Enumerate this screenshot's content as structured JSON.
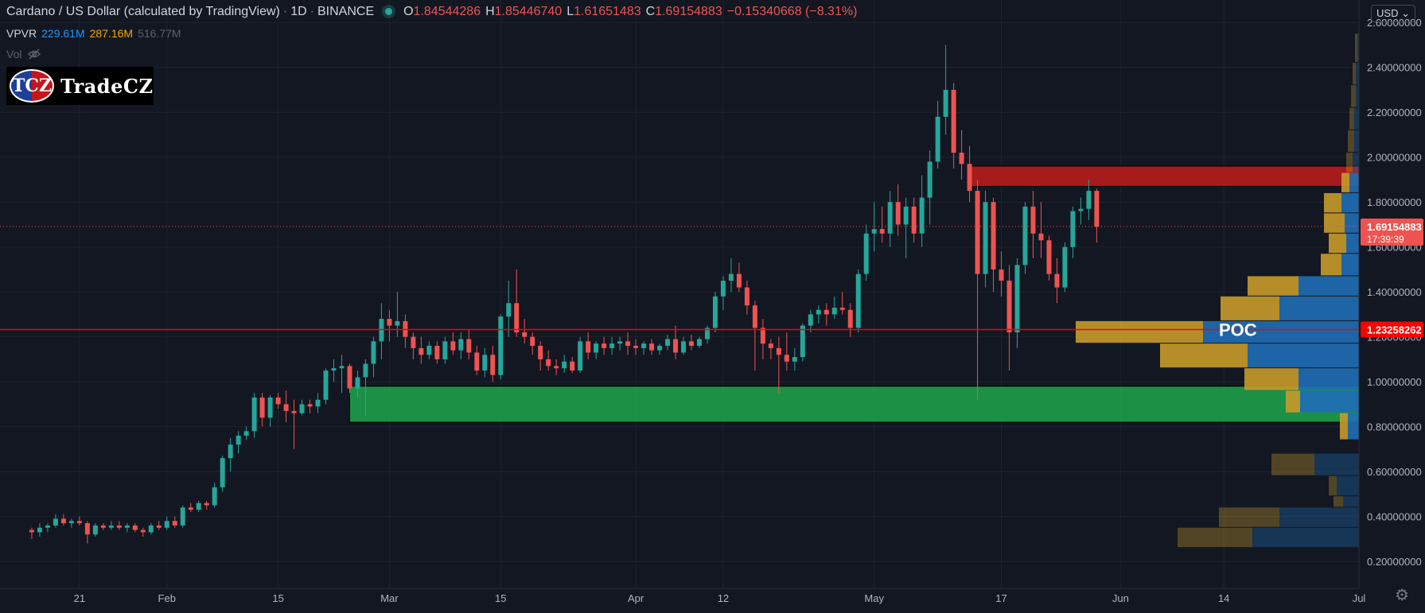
{
  "header": {
    "symbol": "Cardano / US Dollar (calculated by TradingView)",
    "interval": "1D",
    "exchange": "BINANCE",
    "ohlc": [
      {
        "k": "O",
        "v": "1.84544286"
      },
      {
        "k": "H",
        "v": "1.85446740"
      },
      {
        "k": "L",
        "v": "1.61651483"
      },
      {
        "k": "C",
        "v": "1.69154883"
      }
    ],
    "change": "−0.15340668 (−8.31%)"
  },
  "vpvr": {
    "label": "VPVR",
    "values": [
      {
        "text": "229.61M",
        "color": "#2196f3"
      },
      {
        "text": "287.16M",
        "color": "#f7a600"
      },
      {
        "text": "516.77M",
        "color": "#5d606b"
      }
    ]
  },
  "vol": {
    "label": "Vol"
  },
  "logo": {
    "badge": "TCZ",
    "name": "TradeCZ"
  },
  "currency": "USD",
  "colors": {
    "up": "#26a69a",
    "down": "#ef5350",
    "background": "#131722",
    "grid": "#1e222d",
    "poc": "#ff0000",
    "supply_zone": "#b71c1c",
    "demand_zone": "#1e9e4a",
    "vp_up": "#c89a2a",
    "vp_down": "#1f6eb5"
  },
  "chart_data": {
    "type": "candlestick",
    "y_axis": {
      "ticks": [
        0.2,
        0.4,
        0.6,
        0.8,
        1.0,
        1.2,
        1.4,
        1.6,
        1.8,
        2.0,
        2.2,
        2.4,
        2.6
      ],
      "tick_labels": [
        "0.20000000",
        "0.40000000",
        "0.60000000",
        "0.80000000",
        "1.00000000",
        "1.20000000",
        "1.40000000",
        "1.60000000",
        "1.80000000",
        "2.00000000",
        "2.20000000",
        "2.40000000",
        "2.60000000"
      ],
      "range": [
        0.08,
        2.7
      ]
    },
    "x_axis": {
      "range_days": [
        -4,
        167
      ],
      "ticks": [
        {
          "label": "21",
          "day": 6
        },
        {
          "label": "Feb",
          "day": 17
        },
        {
          "label": "15",
          "day": 31
        },
        {
          "label": "Mar",
          "day": 45
        },
        {
          "label": "15",
          "day": 59
        },
        {
          "label": "Apr",
          "day": 76
        },
        {
          "label": "12",
          "day": 87
        },
        {
          "label": "May",
          "day": 106
        },
        {
          "label": "17",
          "day": 122
        },
        {
          "label": "Jun",
          "day": 137
        },
        {
          "label": "14",
          "day": 150
        },
        {
          "label": "Jul",
          "day": 167
        }
      ]
    },
    "last_price": {
      "value": 1.69154883,
      "label": "1.69154883",
      "countdown": "17:39:39"
    },
    "poc": {
      "value": 1.23258262,
      "label": "1.23258262",
      "text": "POC"
    },
    "zones": [
      {
        "kind": "supply",
        "y_low": 1.87,
        "y_high": 1.96,
        "day_start": 118,
        "day_end": 172
      },
      {
        "kind": "demand",
        "y_low": 0.82,
        "y_high": 0.98,
        "day_start": 40,
        "day_end": 172
      }
    ],
    "candles": [
      [
        0.34,
        0.35,
        0.3,
        0.33
      ],
      [
        0.33,
        0.37,
        0.31,
        0.35
      ],
      [
        0.35,
        0.37,
        0.33,
        0.36
      ],
      [
        0.36,
        0.41,
        0.35,
        0.39
      ],
      [
        0.39,
        0.41,
        0.36,
        0.37
      ],
      [
        0.37,
        0.39,
        0.35,
        0.38
      ],
      [
        0.38,
        0.4,
        0.36,
        0.37
      ],
      [
        0.37,
        0.38,
        0.28,
        0.32
      ],
      [
        0.32,
        0.37,
        0.31,
        0.36
      ],
      [
        0.36,
        0.37,
        0.34,
        0.35
      ],
      [
        0.35,
        0.38,
        0.34,
        0.36
      ],
      [
        0.36,
        0.38,
        0.34,
        0.35
      ],
      [
        0.35,
        0.37,
        0.33,
        0.36
      ],
      [
        0.36,
        0.37,
        0.33,
        0.34
      ],
      [
        0.34,
        0.35,
        0.31,
        0.33
      ],
      [
        0.33,
        0.37,
        0.32,
        0.36
      ],
      [
        0.36,
        0.38,
        0.34,
        0.35
      ],
      [
        0.35,
        0.4,
        0.34,
        0.38
      ],
      [
        0.38,
        0.4,
        0.35,
        0.36
      ],
      [
        0.36,
        0.45,
        0.35,
        0.44
      ],
      [
        0.44,
        0.46,
        0.42,
        0.43
      ],
      [
        0.43,
        0.47,
        0.42,
        0.46
      ],
      [
        0.46,
        0.47,
        0.43,
        0.45
      ],
      [
        0.45,
        0.55,
        0.44,
        0.53
      ],
      [
        0.53,
        0.67,
        0.51,
        0.66
      ],
      [
        0.66,
        0.75,
        0.6,
        0.72
      ],
      [
        0.72,
        0.78,
        0.68,
        0.76
      ],
      [
        0.76,
        0.8,
        0.74,
        0.78
      ],
      [
        0.78,
        0.95,
        0.75,
        0.93
      ],
      [
        0.93,
        0.95,
        0.8,
        0.84
      ],
      [
        0.84,
        0.94,
        0.8,
        0.93
      ],
      [
        0.93,
        0.95,
        0.88,
        0.9
      ],
      [
        0.9,
        0.96,
        0.82,
        0.87
      ],
      [
        0.87,
        0.92,
        0.7,
        0.86
      ],
      [
        0.86,
        0.92,
        0.85,
        0.9
      ],
      [
        0.9,
        0.92,
        0.86,
        0.89
      ],
      [
        0.89,
        0.95,
        0.86,
        0.92
      ],
      [
        0.92,
        1.06,
        0.9,
        1.05
      ],
      [
        1.05,
        1.1,
        1.0,
        1.06
      ],
      [
        1.06,
        1.12,
        0.95,
        1.07
      ],
      [
        1.07,
        1.08,
        0.95,
        0.97
      ],
      [
        0.97,
        1.05,
        0.93,
        1.02
      ],
      [
        1.02,
        1.1,
        0.85,
        1.08
      ],
      [
        1.08,
        1.2,
        1.02,
        1.18
      ],
      [
        1.18,
        1.35,
        1.1,
        1.28
      ],
      [
        1.28,
        1.32,
        1.18,
        1.25
      ],
      [
        1.25,
        1.4,
        1.2,
        1.27
      ],
      [
        1.27,
        1.3,
        1.15,
        1.2
      ],
      [
        1.2,
        1.22,
        1.1,
        1.15
      ],
      [
        1.15,
        1.2,
        1.08,
        1.12
      ],
      [
        1.12,
        1.18,
        1.1,
        1.16
      ],
      [
        1.16,
        1.18,
        1.08,
        1.1
      ],
      [
        1.1,
        1.2,
        1.08,
        1.18
      ],
      [
        1.18,
        1.22,
        1.12,
        1.14
      ],
      [
        1.14,
        1.22,
        1.1,
        1.19
      ],
      [
        1.19,
        1.23,
        1.1,
        1.13
      ],
      [
        1.13,
        1.16,
        1.03,
        1.05
      ],
      [
        1.05,
        1.15,
        1.02,
        1.12
      ],
      [
        1.12,
        1.16,
        1.0,
        1.03
      ],
      [
        1.03,
        1.3,
        1.01,
        1.29
      ],
      [
        1.29,
        1.45,
        1.2,
        1.35
      ],
      [
        1.35,
        1.5,
        1.2,
        1.22
      ],
      [
        1.22,
        1.28,
        1.17,
        1.2
      ],
      [
        1.2,
        1.22,
        1.12,
        1.16
      ],
      [
        1.16,
        1.18,
        1.05,
        1.1
      ],
      [
        1.1,
        1.14,
        1.05,
        1.07
      ],
      [
        1.07,
        1.1,
        1.03,
        1.06
      ],
      [
        1.06,
        1.12,
        1.04,
        1.09
      ],
      [
        1.09,
        1.11,
        1.04,
        1.05
      ],
      [
        1.05,
        1.2,
        1.04,
        1.18
      ],
      [
        1.18,
        1.22,
        1.1,
        1.13
      ],
      [
        1.13,
        1.18,
        1.1,
        1.17
      ],
      [
        1.17,
        1.2,
        1.12,
        1.15
      ],
      [
        1.15,
        1.2,
        1.12,
        1.17
      ],
      [
        1.17,
        1.2,
        1.14,
        1.18
      ],
      [
        1.18,
        1.22,
        1.12,
        1.16
      ],
      [
        1.16,
        1.19,
        1.12,
        1.15
      ],
      [
        1.15,
        1.18,
        1.12,
        1.17
      ],
      [
        1.17,
        1.19,
        1.12,
        1.14
      ],
      [
        1.14,
        1.17,
        1.12,
        1.16
      ],
      [
        1.16,
        1.21,
        1.14,
        1.19
      ],
      [
        1.19,
        1.25,
        1.1,
        1.13
      ],
      [
        1.13,
        1.2,
        1.12,
        1.18
      ],
      [
        1.18,
        1.21,
        1.14,
        1.16
      ],
      [
        1.16,
        1.2,
        1.15,
        1.19
      ],
      [
        1.19,
        1.25,
        1.17,
        1.24
      ],
      [
        1.24,
        1.4,
        1.22,
        1.38
      ],
      [
        1.38,
        1.47,
        1.32,
        1.45
      ],
      [
        1.45,
        1.55,
        1.4,
        1.48
      ],
      [
        1.48,
        1.53,
        1.4,
        1.42
      ],
      [
        1.42,
        1.45,
        1.3,
        1.34
      ],
      [
        1.34,
        1.36,
        1.05,
        1.24
      ],
      [
        1.24,
        1.28,
        1.1,
        1.17
      ],
      [
        1.17,
        1.19,
        1.1,
        1.15
      ],
      [
        1.15,
        1.2,
        0.95,
        1.12
      ],
      [
        1.12,
        1.22,
        1.05,
        1.09
      ],
      [
        1.09,
        1.15,
        1.05,
        1.11
      ],
      [
        1.11,
        1.26,
        1.09,
        1.25
      ],
      [
        1.25,
        1.32,
        1.22,
        1.3
      ],
      [
        1.3,
        1.34,
        1.26,
        1.32
      ],
      [
        1.32,
        1.35,
        1.25,
        1.3
      ],
      [
        1.3,
        1.38,
        1.28,
        1.33
      ],
      [
        1.33,
        1.4,
        1.3,
        1.32
      ],
      [
        1.32,
        1.35,
        1.2,
        1.24
      ],
      [
        1.24,
        1.5,
        1.22,
        1.48
      ],
      [
        1.48,
        1.7,
        1.45,
        1.66
      ],
      [
        1.66,
        1.8,
        1.58,
        1.68
      ],
      [
        1.68,
        1.78,
        1.62,
        1.66
      ],
      [
        1.66,
        1.85,
        1.6,
        1.8
      ],
      [
        1.8,
        1.88,
        1.65,
        1.7
      ],
      [
        1.7,
        1.82,
        1.55,
        1.78
      ],
      [
        1.78,
        1.82,
        1.62,
        1.66
      ],
      [
        1.66,
        1.92,
        1.6,
        1.82
      ],
      [
        1.82,
        2.03,
        1.7,
        1.98
      ],
      [
        1.98,
        2.25,
        1.95,
        2.18
      ],
      [
        2.18,
        2.5,
        2.1,
        2.3
      ],
      [
        2.3,
        2.33,
        1.95,
        2.02
      ],
      [
        2.02,
        2.12,
        1.9,
        1.97
      ],
      [
        1.97,
        2.05,
        1.8,
        1.85
      ],
      [
        1.85,
        1.9,
        0.92,
        1.48
      ],
      [
        1.48,
        1.85,
        1.42,
        1.8
      ],
      [
        1.8,
        1.82,
        1.4,
        1.5
      ],
      [
        1.5,
        1.58,
        1.38,
        1.45
      ],
      [
        1.45,
        1.52,
        1.05,
        1.22
      ],
      [
        1.22,
        1.55,
        1.15,
        1.52
      ],
      [
        1.52,
        1.8,
        1.48,
        1.78
      ],
      [
        1.78,
        1.85,
        1.55,
        1.66
      ],
      [
        1.66,
        1.8,
        1.55,
        1.63
      ],
      [
        1.63,
        1.65,
        1.45,
        1.48
      ],
      [
        1.48,
        1.55,
        1.35,
        1.42
      ],
      [
        1.42,
        1.62,
        1.4,
        1.6
      ],
      [
        1.6,
        1.78,
        1.55,
        1.76
      ],
      [
        1.76,
        1.82,
        1.7,
        1.77
      ],
      [
        1.77,
        1.9,
        1.72,
        1.85
      ],
      [
        1.85,
        1.86,
        1.62,
        1.69
      ]
    ],
    "volume_profile": [
      {
        "y_low": 0.26,
        "y_high": 0.35,
        "up": 94,
        "down": 134
      },
      {
        "y_low": 0.35,
        "y_high": 0.44,
        "up": 76,
        "down": 100
      },
      {
        "y_low": 0.44,
        "y_high": 0.49,
        "up": 12,
        "down": 20
      },
      {
        "y_low": 0.49,
        "y_high": 0.58,
        "up": 10,
        "down": 28
      },
      {
        "y_low": 0.58,
        "y_high": 0.68,
        "up": 54,
        "down": 56
      },
      {
        "y_low": 0.68,
        "y_high": 0.74,
        "up": 0,
        "down": 0
      },
      {
        "y_low": 0.74,
        "y_high": 0.86,
        "up": 10,
        "down": 14
      },
      {
        "y_low": 0.86,
        "y_high": 0.96,
        "up": 18,
        "down": 74
      },
      {
        "y_low": 0.96,
        "y_high": 1.06,
        "up": 68,
        "down": 76
      },
      {
        "y_low": 1.06,
        "y_high": 1.17,
        "up": 110,
        "down": 140
      },
      {
        "y_low": 1.17,
        "y_high": 1.27,
        "up": 160,
        "down": 196
      },
      {
        "y_low": 1.27,
        "y_high": 1.38,
        "up": 74,
        "down": 100
      },
      {
        "y_low": 1.38,
        "y_high": 1.47,
        "up": 64,
        "down": 76
      },
      {
        "y_low": 1.47,
        "y_high": 1.57,
        "up": 26,
        "down": 22
      },
      {
        "y_low": 1.57,
        "y_high": 1.66,
        "up": 22,
        "down": 16
      },
      {
        "y_low": 1.66,
        "y_high": 1.75,
        "up": 26,
        "down": 18
      },
      {
        "y_low": 1.75,
        "y_high": 1.84,
        "up": 22,
        "down": 22
      },
      {
        "y_low": 1.84,
        "y_high": 1.93,
        "up": 10,
        "down": 12
      },
      {
        "y_low": 1.93,
        "y_high": 2.02,
        "up": 8,
        "down": 8
      },
      {
        "y_low": 2.02,
        "y_high": 2.12,
        "up": 8,
        "down": 6
      },
      {
        "y_low": 2.12,
        "y_high": 2.22,
        "up": 6,
        "down": 6
      },
      {
        "y_low": 2.22,
        "y_high": 2.32,
        "up": 6,
        "down": 4
      },
      {
        "y_low": 2.32,
        "y_high": 2.42,
        "up": 4,
        "down": 4
      },
      {
        "y_low": 2.42,
        "y_high": 2.55,
        "up": 3,
        "down": 2
      }
    ]
  }
}
